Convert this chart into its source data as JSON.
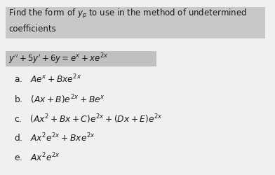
{
  "title_line1": "Find the form of $y_p$ to use in the method of undetermined",
  "title_line2": "coefficients",
  "equation": "$y'' + 5y' + 6y = e^x + xe^{2x}$",
  "options": [
    "a.   $Ae^x + Bxe^{2x}$",
    "b.   $(Ax + B)e^{2x} + Be^x$",
    "c.   $(Ax^2 + Bx + C)e^{2x} + (Dx + E)e^{2x}$",
    "d.   $Ax^2e^{2x} + Bxe^{2x}$",
    "e.   $Ax^2e^{2x}$"
  ],
  "bg_color": "#f0f0f0",
  "title_bg": "#c8c8c8",
  "eq_bg": "#c0c0c0",
  "text_color": "#1a1a1a",
  "title_fontsize": 8.5,
  "eq_fontsize": 8.5,
  "option_fontsize": 8.8
}
